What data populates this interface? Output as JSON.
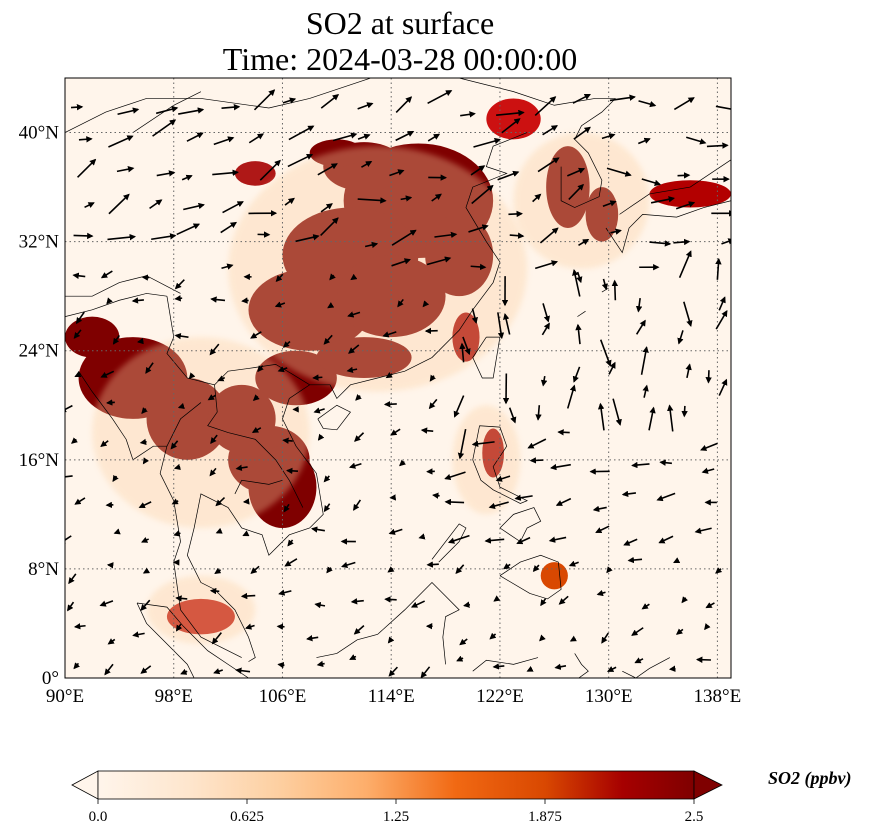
{
  "title": {
    "line1": "SO2 at surface",
    "line2": "Time: 2024-03-28 00:00:00"
  },
  "map": {
    "lon_range": [
      90,
      139
    ],
    "lat_range": [
      0,
      44
    ],
    "lon_ticks": [
      "90°E",
      "98°E",
      "106°E",
      "114°E",
      "122°E",
      "130°E",
      "138°E"
    ],
    "lat_ticks": [
      "0°",
      "8°N",
      "16°N",
      "24°N",
      "32°N",
      "40°N"
    ],
    "colormap": [
      "#fff5eb",
      "#fee6ce",
      "#fdd0a2",
      "#fdae6b",
      "#fd8d3c",
      "#f16913",
      "#d94801",
      "#a63603",
      "#7f0000"
    ],
    "high_color": "#7f0000",
    "low_color": "#fff5eb"
  },
  "colorbar": {
    "label": "SO2 (ppbv)",
    "ticks": [
      "0.0",
      "0.625",
      "1.25",
      "1.875",
      "2.5"
    ],
    "min": 0,
    "max": 2.5,
    "extend": "both"
  }
}
